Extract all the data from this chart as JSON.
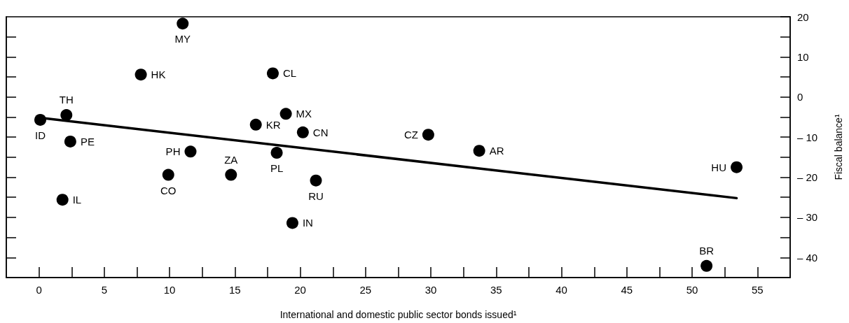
{
  "chart_data": {
    "type": "scatter",
    "xlabel": "International and domestic public sector bonds issued¹",
    "ylabel": "Fiscal balance¹",
    "xlim": [
      -2.5,
      57.5
    ],
    "xticks": [
      0,
      {
        "value": 2.5,
        "label": null
      },
      5,
      {
        "value": 7.5,
        "label": null
      },
      10,
      {
        "value": 12.5,
        "label": null
      },
      15,
      {
        "value": 17.5,
        "label": null
      },
      20,
      {
        "value": 22.5,
        "label": null
      },
      25,
      {
        "value": 27.5,
        "label": null
      },
      30,
      {
        "value": 32.5,
        "label": null
      },
      35,
      {
        "value": 37.5,
        "label": null
      },
      40,
      {
        "value": 42.5,
        "label": null
      },
      45,
      {
        "value": 47.5,
        "label": null
      },
      50,
      {
        "value": 52.5,
        "label": null
      },
      55
    ],
    "ylim": [
      -45,
      20
    ],
    "yticks": [
      20,
      {
        "value": 15,
        "label": null
      },
      10,
      {
        "value": 5,
        "label": null
      },
      0,
      {
        "value": -5,
        "label": null
      },
      {
        "value": -10,
        "label": "– 10"
      },
      {
        "value": -15,
        "label": null
      },
      {
        "value": -20,
        "label": "– 20"
      },
      {
        "value": -25,
        "label": null
      },
      {
        "value": -30,
        "label": "– 30"
      },
      {
        "value": -35,
        "label": null
      },
      {
        "value": -40,
        "label": "– 40"
      }
    ],
    "series": [
      {
        "color": "#000000",
        "marker": "circle",
        "x": [
          0.1,
          1.8,
          2.1,
          2.4,
          7.8,
          9.9,
          11.0,
          11.6,
          14.7,
          16.6,
          17.9,
          18.2,
          18.9,
          19.4,
          20.2,
          21.2,
          29.8,
          33.7,
          51.1,
          53.4
        ],
        "values": [
          -5.7,
          -25.6,
          -4.5,
          -11.1,
          5.6,
          -19.4,
          18.3,
          -13.6,
          -19.4,
          -6.9,
          5.9,
          -13.9,
          -4.2,
          -31.4,
          -8.8,
          -20.8,
          -9.4,
          -13.4,
          -42.1,
          -17.5
        ],
        "value_labels": [
          "ID",
          "IL",
          "TH",
          "PE",
          "HK",
          "CO",
          "MY",
          "PH",
          "ZA",
          "KR",
          "CL",
          "PL",
          "MX",
          "IN",
          "CN",
          "RU",
          "CZ",
          "AR",
          "BR",
          "HU"
        ]
      },
      {
        "type": "line",
        "color": "#000000",
        "marker": "none",
        "line_style": "solid",
        "x": [
          0.1,
          53.4
        ],
        "values": [
          -5.2,
          -25.2
        ]
      }
    ]
  }
}
